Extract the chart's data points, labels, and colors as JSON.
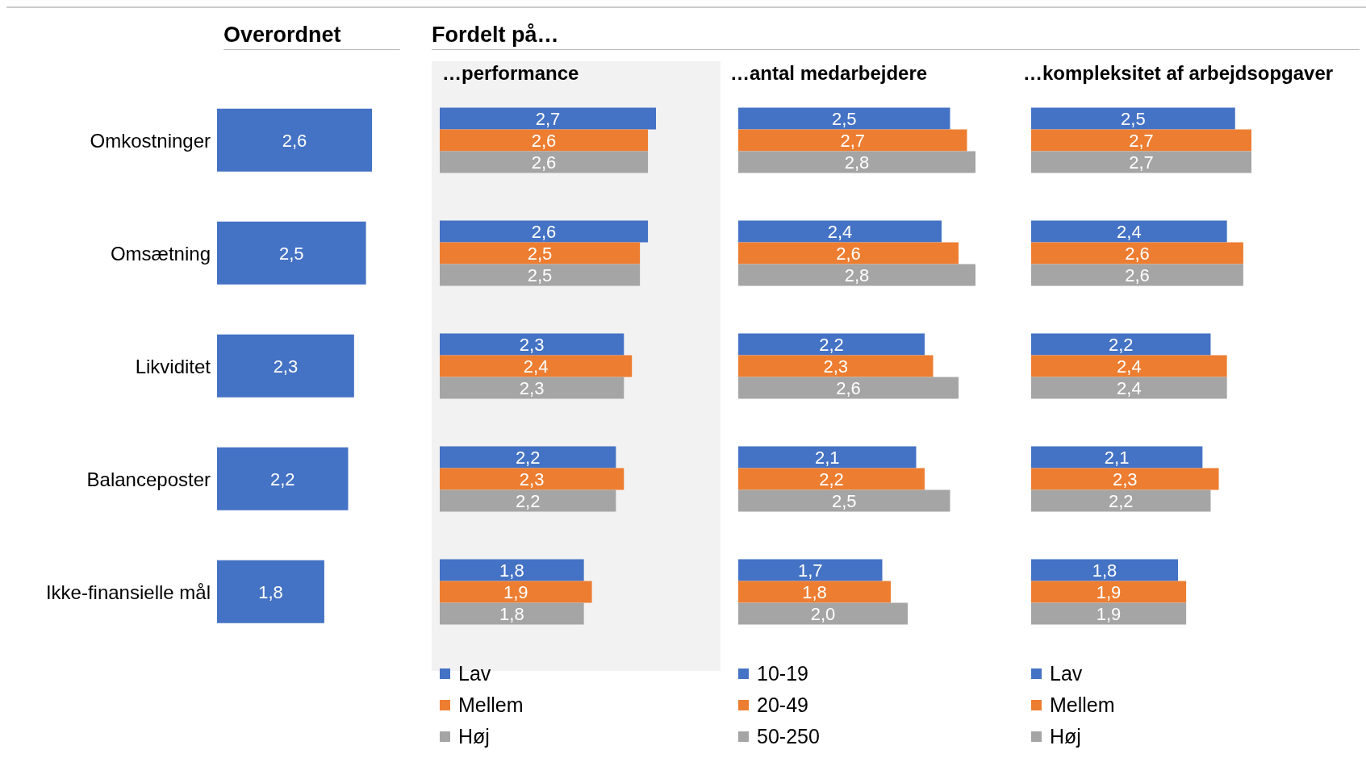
{
  "chart_data": [
    {
      "type": "bar",
      "orientation": "horizontal",
      "title": "Overordnet",
      "categories": [
        "Omkostninger",
        "Omsætning",
        "Likviditet",
        "Balanceposter",
        "Ikke-finansielle mål"
      ],
      "series": [
        {
          "color": "#4472c4",
          "values": [
            2.6,
            2.5,
            2.3,
            2.2,
            1.8
          ],
          "value_labels": [
            "2,6",
            "2,5",
            "2,3",
            "2,2",
            "1,8"
          ]
        }
      ],
      "tick_labels": "y",
      "legend": false
    },
    {
      "type": "bar",
      "orientation": "horizontal",
      "title": "Fordelt på…",
      "subtitle": "…performance",
      "categories": [
        null,
        null,
        null,
        null,
        null
      ],
      "series": [
        {
          "name": "Lav",
          "color": "#4472c4",
          "values": [
            2.7,
            2.6,
            2.3,
            2.2,
            1.8
          ],
          "value_labels": [
            "2,7",
            "2,6",
            "2,3",
            "2,2",
            "1,8"
          ]
        },
        {
          "name": "Mellem",
          "color": "#ed7d31",
          "values": [
            2.6,
            2.5,
            2.4,
            2.3,
            1.9
          ],
          "value_labels": [
            "2,6",
            "2,5",
            "2,4",
            "2,3",
            "1,9"
          ]
        },
        {
          "name": "Høj",
          "color": "#a5a5a5",
          "values": [
            2.6,
            2.5,
            2.3,
            2.2,
            1.8
          ],
          "value_labels": [
            "2,6",
            "2,5",
            "2,3",
            "2,2",
            "1,8"
          ]
        }
      ],
      "tick_labels": false,
      "legend": "bottom"
    },
    {
      "type": "bar",
      "orientation": "horizontal",
      "subtitle": "…antal medarbejdere",
      "categories": [
        null,
        null,
        null,
        null,
        null
      ],
      "series": [
        {
          "name": "10-19",
          "color": "#4472c4",
          "values": [
            2.5,
            2.4,
            2.2,
            2.1,
            1.7
          ],
          "value_labels": [
            "2,5",
            "2,4",
            "2,2",
            "2,1",
            "1,7"
          ]
        },
        {
          "name": "20-49",
          "color": "#ed7d31",
          "values": [
            2.7,
            2.6,
            2.3,
            2.2,
            1.8
          ],
          "value_labels": [
            "2,7",
            "2,6",
            "2,3",
            "2,2",
            "1,8"
          ]
        },
        {
          "name": "50-250",
          "color": "#a5a5a5",
          "values": [
            2.8,
            2.8,
            2.6,
            2.5,
            2.0
          ],
          "value_labels": [
            "2,8",
            "2,8",
            "2,6",
            "2,5",
            "2,0"
          ]
        }
      ],
      "tick_labels": false,
      "legend": "bottom"
    },
    {
      "type": "bar",
      "orientation": "horizontal",
      "subtitle": "…kompleksitet af arbejdsopgaver",
      "categories": [
        null,
        null,
        null,
        null,
        null
      ],
      "series": [
        {
          "name": "Lav",
          "color": "#4472c4",
          "values": [
            2.5,
            2.4,
            2.2,
            2.1,
            1.8
          ],
          "value_labels": [
            "2,5",
            "2,4",
            "2,2",
            "2,1",
            "1,8"
          ]
        },
        {
          "name": "Mellem",
          "color": "#ed7d31",
          "values": [
            2.7,
            2.6,
            2.4,
            2.3,
            1.9
          ],
          "value_labels": [
            "2,7",
            "2,6",
            "2,4",
            "2,3",
            "1,9"
          ]
        },
        {
          "name": "Høj",
          "color": "#a5a5a5",
          "values": [
            2.7,
            2.6,
            2.4,
            2.2,
            1.9
          ],
          "value_labels": [
            "2,7",
            "2,6",
            "2,4",
            "2,2",
            "1,9"
          ]
        }
      ],
      "tick_labels": false,
      "legend": "bottom"
    }
  ]
}
